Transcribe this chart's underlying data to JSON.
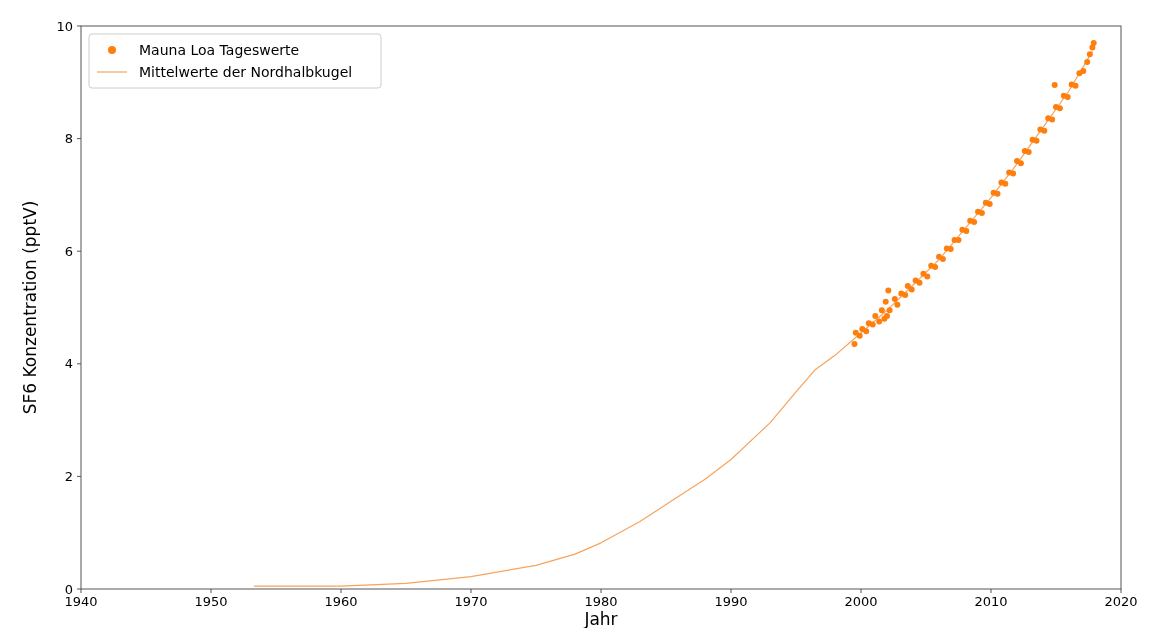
{
  "chart_data": {
    "type": "scatter",
    "xlabel": "Jahr",
    "ylabel": "SF6 Konzentration (pptV)",
    "xlim": [
      1940,
      2020
    ],
    "ylim": [
      0,
      10
    ],
    "xticks": [
      1940,
      1950,
      1960,
      1970,
      1980,
      1990,
      2000,
      2010,
      2020
    ],
    "yticks": [
      0,
      2,
      4,
      6,
      8,
      10
    ],
    "grid": false,
    "legend": "top left",
    "series": [
      {
        "name": "Mauna Loa Tageswerte",
        "marker": "circle",
        "color": "#ff7f0e",
        "x": [
          1999.5,
          1999.6,
          1999.9,
          2000.1,
          2000.4,
          2000.6,
          2000.9,
          2001.1,
          2001.4,
          2001.6,
          2001.8,
          2001.9,
          2002.0,
          2002.1,
          2002.2,
          2002.6,
          2002.8,
          2003.1,
          2003.4,
          2003.6,
          2003.9,
          2004.2,
          2004.5,
          2004.8,
          2005.1,
          2005.4,
          2005.7,
          2006.0,
          2006.3,
          2006.6,
          2006.9,
          2007.2,
          2007.5,
          2007.8,
          2008.1,
          2008.4,
          2008.7,
          2009.0,
          2009.3,
          2009.6,
          2009.9,
          2010.2,
          2010.5,
          2010.8,
          2011.1,
          2011.4,
          2011.7,
          2012.0,
          2012.3,
          2012.6,
          2012.9,
          2013.2,
          2013.5,
          2013.8,
          2014.1,
          2014.4,
          2014.7,
          2014.9,
          2015.0,
          2015.3,
          2015.6,
          2015.9,
          2016.2,
          2016.5,
          2016.8,
          2017.1,
          2017.4,
          2017.6,
          2017.8,
          2017.9
        ],
        "values": [
          4.35,
          4.55,
          4.5,
          4.62,
          4.58,
          4.72,
          4.7,
          4.85,
          4.75,
          4.95,
          4.8,
          5.1,
          4.85,
          5.3,
          4.95,
          5.15,
          5.05,
          5.25,
          5.22,
          5.38,
          5.32,
          5.48,
          5.44,
          5.6,
          5.55,
          5.74,
          5.72,
          5.9,
          5.86,
          6.05,
          6.04,
          6.2,
          6.2,
          6.38,
          6.36,
          6.54,
          6.52,
          6.7,
          6.68,
          6.86,
          6.84,
          7.04,
          7.02,
          7.22,
          7.2,
          7.4,
          7.38,
          7.6,
          7.56,
          7.78,
          7.76,
          7.98,
          7.96,
          8.16,
          8.14,
          8.36,
          8.34,
          8.95,
          8.56,
          8.54,
          8.76,
          8.74,
          8.96,
          8.94,
          9.16,
          9.2,
          9.36,
          9.5,
          9.62,
          9.7
        ]
      },
      {
        "name": "Mittelwerte der Nordhalbkugel",
        "type": "line",
        "line_style": "solid",
        "color": "#f7a35c",
        "x": [
          1953.3,
          1960,
          1965,
          1970,
          1975,
          1978,
          1980,
          1983,
          1985,
          1988,
          1990,
          1993,
          1995,
          1996.5,
          1998,
          1999.5,
          2000,
          2002,
          2004,
          2006,
          2008,
          2010,
          2012,
          2014,
          2016,
          2017.8
        ],
        "values": [
          0.05,
          0.05,
          0.1,
          0.22,
          0.42,
          0.62,
          0.82,
          1.2,
          1.5,
          1.95,
          2.3,
          2.95,
          3.5,
          3.9,
          4.15,
          4.45,
          4.55,
          4.95,
          5.4,
          5.85,
          6.4,
          6.95,
          7.55,
          8.2,
          8.85,
          9.55
        ]
      }
    ]
  }
}
